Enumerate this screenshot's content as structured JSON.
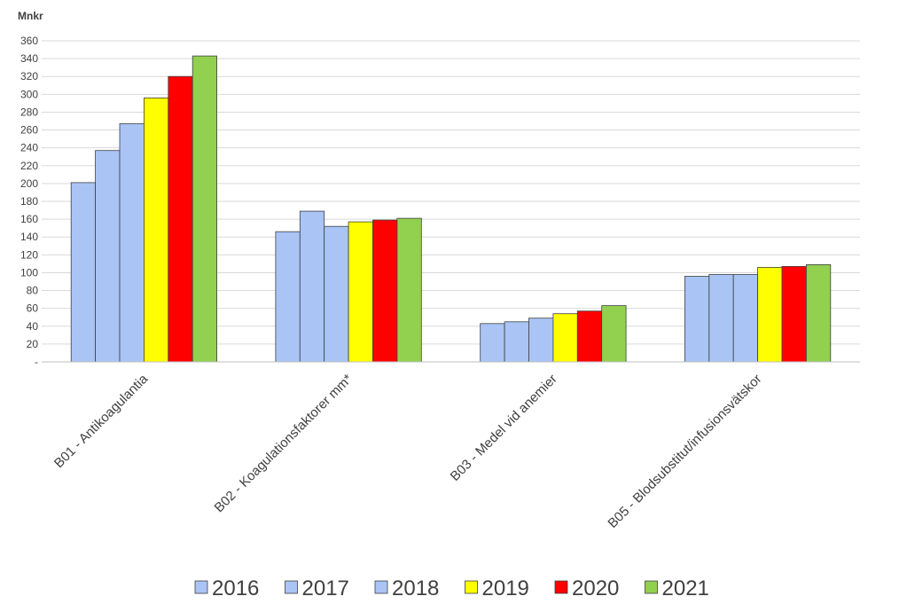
{
  "chart_data": {
    "type": "bar",
    "ylabel": "Mnkr",
    "ylim": [
      0,
      360
    ],
    "ytick_step": 20,
    "y_ticks": [
      "-",
      "20",
      "40",
      "60",
      "80",
      "100",
      "120",
      "140",
      "160",
      "180",
      "200",
      "220",
      "240",
      "260",
      "280",
      "300",
      "320",
      "340",
      "360"
    ],
    "grid": true,
    "legend_position": "bottom",
    "categories": [
      "B01 - Antikoagulantia",
      "B02 - Koagulationsfaktorer mm*",
      "B03 - Medel vid anemier",
      "B05 - Blodsubstitut/infusionsvätskor"
    ],
    "series": [
      {
        "name": "2016",
        "color": "#a9c4f5",
        "values": [
          201,
          146,
          43,
          96
        ]
      },
      {
        "name": "2017",
        "color": "#a9c4f5",
        "values": [
          237,
          169,
          45,
          98
        ]
      },
      {
        "name": "2018",
        "color": "#a9c4f5",
        "values": [
          267,
          152,
          49,
          98
        ]
      },
      {
        "name": "2019",
        "color": "#ffff00",
        "values": [
          296,
          157,
          54,
          106
        ]
      },
      {
        "name": "2020",
        "color": "#ff0000",
        "values": [
          320,
          159,
          57,
          107
        ]
      },
      {
        "name": "2021",
        "color": "#92d050",
        "values": [
          343,
          161,
          63,
          109
        ]
      }
    ]
  }
}
